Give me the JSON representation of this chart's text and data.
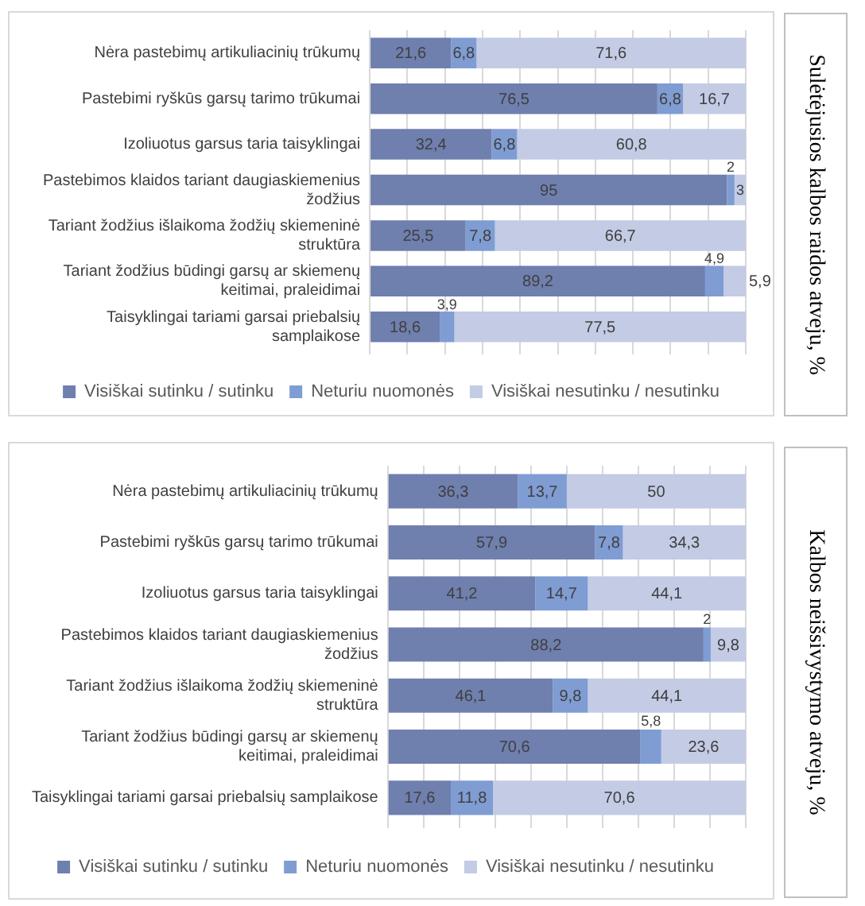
{
  "chart_data": [
    {
      "type": "bar",
      "orientation": "horizontal",
      "stacked": true,
      "y2label": "Sulėtėjusios kalbos raidos atveju, %",
      "categories": [
        "Nėra pastebimų artikuliacinių trūkumų",
        "Pastebimi ryškūs garsų tarimo trūkumai",
        "Izoliuotus garsus taria taisyklingai",
        "Pastebimos klaidos tariant daugiaskiemenius žodžius",
        "Tariant žodžius išlaikoma žodžių skiemeninė struktūra",
        "Tariant žodžius būdingi garsų ar skiemenų keitimai, praleidimai",
        "Taisyklingai tariami garsai priebalsių samplaikose"
      ],
      "series": [
        {
          "name": "Visiškai sutinku / sutinku",
          "color": "#6f7fae",
          "values": [
            21.6,
            76.5,
            32.4,
            95,
            25.5,
            89.2,
            18.6
          ],
          "value_labels": [
            "21,6",
            "76,5",
            "32,4",
            "95",
            "25,5",
            "89,2",
            "18,6"
          ]
        },
        {
          "name": "Neturiu nuomonės",
          "color": "#7f9cd3",
          "values": [
            6.8,
            6.8,
            6.8,
            2,
            7.8,
            4.9,
            3.9
          ],
          "value_labels": [
            "6,8",
            "6,8",
            "6,8",
            "2",
            "7,8",
            "4,9",
            "3,9"
          ]
        },
        {
          "name": "Visiškai nesutinku / nesutinku",
          "color": "#c3cbe5",
          "values": [
            71.6,
            16.7,
            60.8,
            3,
            66.7,
            5.9,
            77.5
          ],
          "value_labels": [
            "71,6",
            "16,7",
            "60,8",
            "3",
            "66,7",
            "5,9",
            "77,5"
          ]
        }
      ],
      "xlim": [
        0,
        100
      ],
      "xticks": [
        {
          "value": 0,
          "label": null
        },
        {
          "value": 10,
          "label": null
        },
        {
          "value": 20,
          "label": null
        },
        {
          "value": 30,
          "label": null
        },
        {
          "value": 40,
          "label": null
        },
        {
          "value": 50,
          "label": null
        },
        {
          "value": 60,
          "label": null
        },
        {
          "value": 70,
          "label": null
        },
        {
          "value": 80,
          "label": null
        },
        {
          "value": 90,
          "label": null
        },
        {
          "value": 100,
          "label": null
        }
      ],
      "grid": "x",
      "legend": "bottom",
      "tick_labels": "y"
    },
    {
      "type": "bar",
      "orientation": "horizontal",
      "stacked": true,
      "y2label": "Kalbos neišsivystymo atveju, %",
      "categories": [
        "Nėra pastebimų artikuliacinių trūkumų",
        "Pastebimi ryškūs garsų tarimo trūkumai",
        "Izoliuotus garsus taria taisyklingai",
        "Pastebimos klaidos tariant daugiaskiemenius žodžius",
        "Tariant žodžius išlaikoma žodžių skiemeninė struktūra",
        "Tariant žodžius būdingi garsų ar skiemenų keitimai, praleidimai",
        "Taisyklingai tariami garsai priebalsių samplaikose"
      ],
      "series": [
        {
          "name": "Visiškai sutinku / sutinku",
          "color": "#6f7fae",
          "values": [
            36.3,
            57.9,
            41.2,
            88.2,
            46.1,
            70.6,
            17.6
          ],
          "value_labels": [
            "36,3",
            "57,9",
            "41,2",
            "88,2",
            "46,1",
            "70,6",
            "17,6"
          ]
        },
        {
          "name": "Neturiu nuomonės",
          "color": "#7f9cd3",
          "values": [
            13.7,
            7.8,
            14.7,
            2,
            9.8,
            5.8,
            11.8
          ],
          "value_labels": [
            "13,7",
            "7,8",
            "14,7",
            "2",
            "9,8",
            "5,8",
            "11,8"
          ]
        },
        {
          "name": "Visiškai nesutinku / nesutinku",
          "color": "#c3cbe5",
          "values": [
            50,
            34.3,
            44.1,
            9.8,
            44.1,
            23.6,
            70.6
          ],
          "value_labels": [
            "50",
            "34,3",
            "44,1",
            "9,8",
            "44,1",
            "23,6",
            "70,6"
          ]
        }
      ],
      "xlim": [
        0,
        100
      ],
      "xticks": [
        {
          "value": 0,
          "label": null
        },
        {
          "value": 10,
          "label": null
        },
        {
          "value": 20,
          "label": null
        },
        {
          "value": 30,
          "label": null
        },
        {
          "value": 40,
          "label": null
        },
        {
          "value": 50,
          "label": null
        },
        {
          "value": 60,
          "label": null
        },
        {
          "value": 70,
          "label": null
        },
        {
          "value": 80,
          "label": null
        },
        {
          "value": 90,
          "label": null
        },
        {
          "value": 100,
          "label": null
        }
      ],
      "grid": "x",
      "legend": "bottom",
      "tick_labels": "y"
    }
  ]
}
